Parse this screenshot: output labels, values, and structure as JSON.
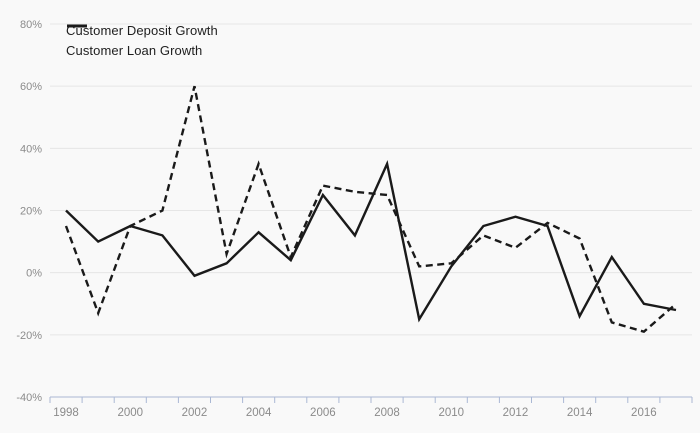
{
  "chart_data": {
    "type": "line",
    "title": "",
    "units": "percent",
    "x": [
      1998,
      1999,
      2000,
      2001,
      2002,
      2003,
      2004,
      2005,
      2006,
      2007,
      2008,
      2009,
      2010,
      2011,
      2012,
      2013,
      2014,
      2015,
      2016,
      2017
    ],
    "x_axis_tick_labels": [
      "1998",
      "2000",
      "2002",
      "2004",
      "2006",
      "2008",
      "2010",
      "2012",
      "2014",
      "2016"
    ],
    "y_axis_ticks": [
      {
        "value": 80,
        "label": "80%"
      },
      {
        "value": 60,
        "label": "60%"
      },
      {
        "value": 40,
        "label": "40%"
      },
      {
        "value": 20,
        "label": "20%"
      },
      {
        "value": 0,
        "label": "0%"
      },
      {
        "value": -20,
        "label": "-20%"
      },
      {
        "value": -40,
        "label": "-40%"
      }
    ],
    "ylim": [
      -40,
      80
    ],
    "grid": true,
    "legend_position": "top-left",
    "series": [
      {
        "name": "Customer Deposit Growth",
        "line_style": "solid",
        "values": [
          20,
          10,
          15,
          12,
          -1,
          3,
          13,
          4,
          25,
          12,
          35,
          -15,
          2,
          15,
          18,
          15,
          -14,
          5,
          -10,
          -12
        ]
      },
      {
        "name": "Customer Loan Growth",
        "line_style": "dashed",
        "values": [
          15,
          -13,
          15,
          20,
          60,
          6,
          35,
          5,
          28,
          26,
          25,
          2,
          3,
          12,
          8,
          16,
          11,
          -16,
          -19,
          -10
        ]
      }
    ],
    "appearance": {
      "background": "#f9f9f9",
      "gridline_color": "#e6e6e6",
      "axis_line_color": "#aab8d4",
      "tick_label_color": "#8b8b8b",
      "series_color": "#1a1a1a",
      "legend_text_color": "#1f1f1f"
    }
  }
}
